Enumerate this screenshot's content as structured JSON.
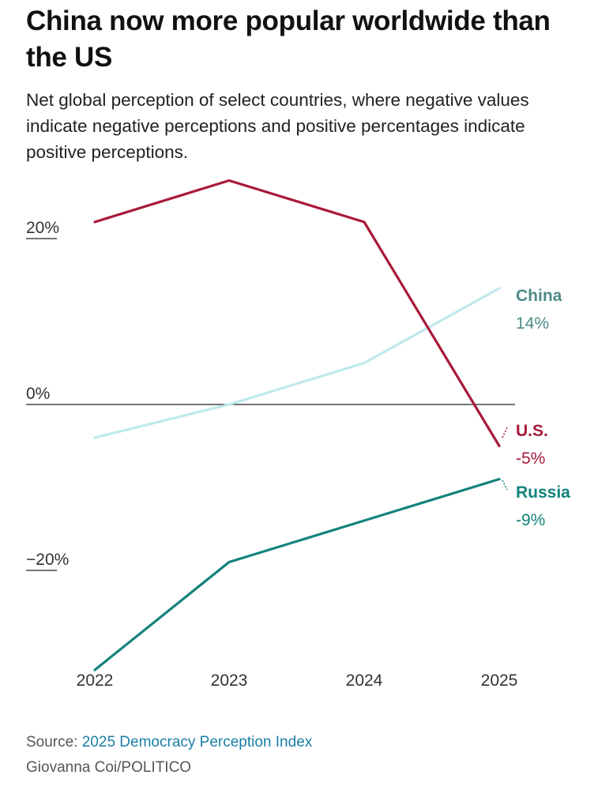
{
  "header": {
    "title": "China now more popular worldwide than the US",
    "subtitle": "Net global perception of select countries, where negative values indicate negative perceptions and positive percentages indicate positive perceptions."
  },
  "chart_data": {
    "type": "line",
    "x": [
      2022,
      2023,
      2024,
      2025
    ],
    "categories": [
      "2022",
      "2023",
      "2024",
      "2025"
    ],
    "ylim": [
      -34,
      28
    ],
    "y_ticks": [
      {
        "value": 20,
        "label": "20%"
      },
      {
        "value": 0,
        "label": "0%"
      },
      {
        "value": -20,
        "label": "−20%"
      }
    ],
    "series": [
      {
        "name": "U.S.",
        "values": [
          22,
          27,
          22,
          -5
        ],
        "end_label": "-5%",
        "color": "#a8193a"
      },
      {
        "name": "China",
        "values": [
          -4,
          0,
          5,
          14
        ],
        "end_label": "14%",
        "color": "#bfe9ec"
      },
      {
        "name": "Russia",
        "values": [
          -32,
          -19,
          -14,
          -9
        ],
        "end_label": "-9%",
        "color": "#12837b"
      }
    ],
    "label_colors": {
      "China": "#4f8b87",
      "U.S.": "#a8193a",
      "Russia": "#12837b"
    },
    "title": "China now more popular worldwide than the US",
    "xlabel": "",
    "ylabel": ""
  },
  "footer": {
    "source_prefix": "Source: ",
    "source_link": "2025 Democracy Perception Index",
    "credit": "Giovanna Coi/POLITICO"
  }
}
